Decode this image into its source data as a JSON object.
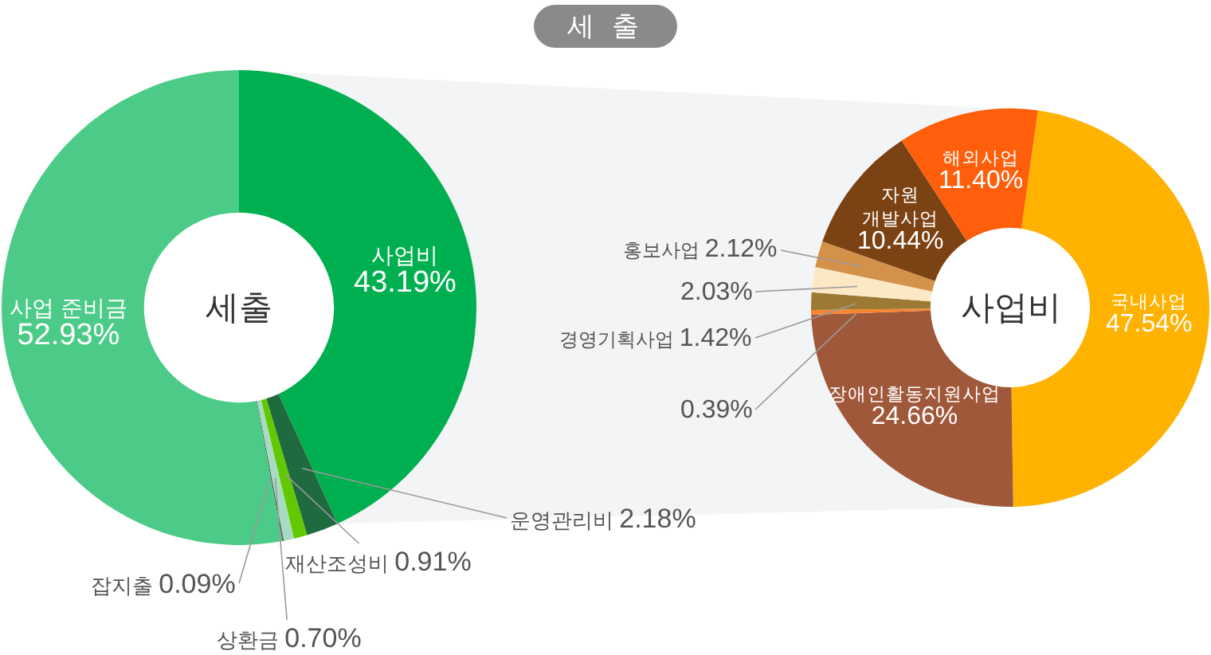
{
  "chart_data": [
    {
      "type": "donut",
      "title": "세 출",
      "annotations": [
        "세출"
      ],
      "categories": [
        "사업비",
        "운영관리비",
        "재산조성비",
        "상환금",
        "잡지출",
        "사업 준비금"
      ],
      "values": [
        43.19,
        2.18,
        0.91,
        0.7,
        0.09,
        52.93
      ],
      "value_labels": [
        "43.19%",
        "2.18%",
        "0.91%",
        "0.70%",
        "0.09%",
        "52.93%"
      ],
      "colors": [
        "#00b050",
        "#1f6b3f",
        "#62c900",
        "#a8dcc2",
        "#37614b",
        "#4ccb88"
      ]
    },
    {
      "type": "donut",
      "annotations": [
        "사업비"
      ],
      "categories": [
        "국내사업",
        "장애인활동지원사업",
        null,
        "경영기획사업",
        null,
        "홍보사업",
        "자원개발사업",
        "해외사업"
      ],
      "values": [
        47.54,
        24.66,
        0.39,
        1.42,
        2.03,
        2.12,
        10.44,
        11.4
      ],
      "value_labels": [
        "47.54%",
        "24.66%",
        "0.39%",
        "1.42%",
        "2.03%",
        "2.12%",
        "10.44%",
        "11.40%"
      ],
      "colors": [
        "#ffb200",
        "#a0583a",
        "#f7862f",
        "#9c7a33",
        "#fde8c6",
        "#d3914a",
        "#7b4213",
        "#ff5e0b"
      ]
    }
  ]
}
